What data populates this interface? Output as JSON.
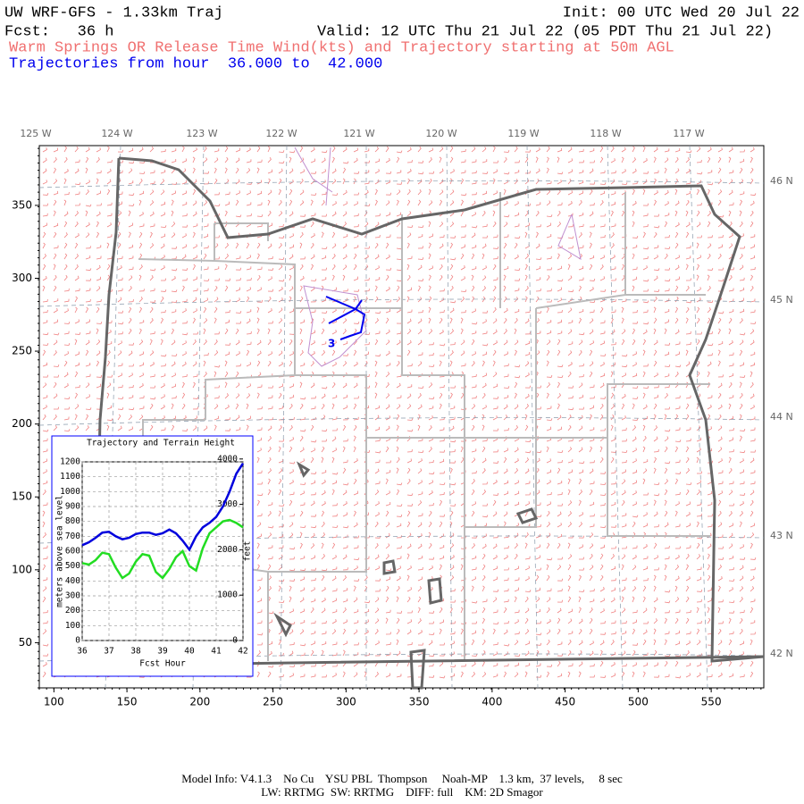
{
  "header": {
    "title": "UW WRF-GFS - 1.33km Traj",
    "init": "Init: 00 UTC Wed 20 Jul 22",
    "forecast": "Fcst:   36 h",
    "valid": "Valid: 12 UTC Thu 21 Jul 22 (05 PDT Thu 21 Jul 22)",
    "subtitle": "Warm Springs OR Release Time Wind(kts) and Trajectory starting at 50m AGL",
    "trajectory_range": "Trajectories from hour  36.000 to  42.000"
  },
  "map": {
    "xlim": [
      90,
      586
    ],
    "ylim": [
      19,
      391
    ],
    "xticks": [
      100,
      150,
      200,
      250,
      300,
      350,
      400,
      450,
      500,
      550
    ],
    "yticks": [
      50,
      100,
      150,
      200,
      250,
      300,
      350
    ],
    "longitude_labels": [
      "125 W",
      "124 W",
      "123 W",
      "122 W",
      "121 W",
      "120 W",
      "119 W",
      "118 W",
      "117 W"
    ],
    "latitude_labels": [
      "46 N",
      "45 N",
      "44 N",
      "43 N",
      "42 N"
    ],
    "trajectory_label": "3"
  },
  "chart_data": {
    "type": "line",
    "title": "Trajectory and Terrain Height",
    "x": [
      36,
      36.25,
      36.5,
      36.75,
      37,
      37.25,
      37.5,
      37.75,
      38,
      38.25,
      38.5,
      38.75,
      39,
      39.25,
      39.5,
      39.75,
      40,
      40.25,
      40.5,
      40.75,
      41,
      41.25,
      41.5,
      41.75,
      42
    ],
    "xlim": [
      36,
      42
    ],
    "xticks": [
      36,
      37,
      38,
      39,
      40,
      41,
      42
    ],
    "ylim": [
      0,
      1200
    ],
    "yticks": [
      0,
      100,
      200,
      300,
      400,
      500,
      600,
      700,
      800,
      900,
      1000,
      1100,
      1200
    ],
    "y2lim": [
      0,
      3937
    ],
    "y2ticks": [
      0,
      1000,
      2000,
      3000,
      4000
    ],
    "xlabel": "Fcst Hour",
    "ylabel": "meters above sea level",
    "y2label": "feet",
    "grid": true,
    "series": [
      {
        "color": "#0000dd",
        "values": [
          640,
          660,
          690,
          725,
          730,
          700,
          680,
          690,
          715,
          725,
          725,
          710,
          720,
          745,
          720,
          670,
          610,
          700,
          760,
          790,
          830,
          900,
          1000,
          1120,
          1190
        ]
      },
      {
        "color": "#22dd22",
        "values": [
          520,
          510,
          540,
          590,
          580,
          490,
          420,
          450,
          530,
          580,
          570,
          460,
          420,
          480,
          560,
          600,
          500,
          470,
          620,
          720,
          760,
          800,
          810,
          790,
          760
        ]
      }
    ]
  },
  "footer": {
    "lines": [
      "Model Info: V4.1.3    No Cu    YSU PBL  Thompson     Noah-MP    1.3 km,  37 levels,     8 sec",
      "LW: RRTMG  SW: RRTMG    DIFF: full    KM: 2D Smagor"
    ]
  }
}
